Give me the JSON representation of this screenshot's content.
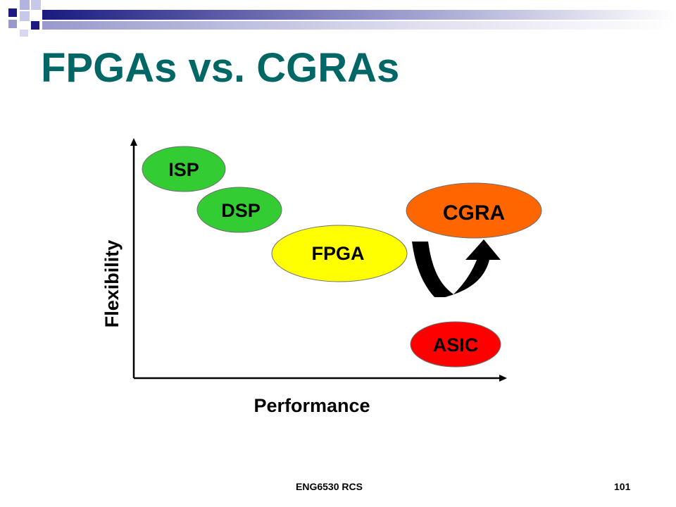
{
  "slide": {
    "title": "FPGAs vs. CGRAs",
    "footer_left": "ENG6530 RCS",
    "page_number": "101"
  },
  "diagram": {
    "y_axis_label": "Flexibility",
    "x_axis_label": "Performance",
    "nodes": [
      {
        "id": "isp",
        "label": "ISP",
        "color": "#33cc33"
      },
      {
        "id": "dsp",
        "label": "DSP",
        "color": "#33cc33"
      },
      {
        "id": "fpga",
        "label": "FPGA",
        "color": "#ffff00"
      },
      {
        "id": "cgra",
        "label": "CGRA",
        "color": "#ff6600"
      },
      {
        "id": "asic",
        "label": "ASIC",
        "color": "#ff0000"
      }
    ],
    "transition_arrow": {
      "from": "fpga",
      "to": "cgra",
      "via": "asic"
    }
  },
  "theme": {
    "title_color": "#006666",
    "deco_dark": "#1a1a80",
    "deco_light": "#b3b3e0"
  }
}
